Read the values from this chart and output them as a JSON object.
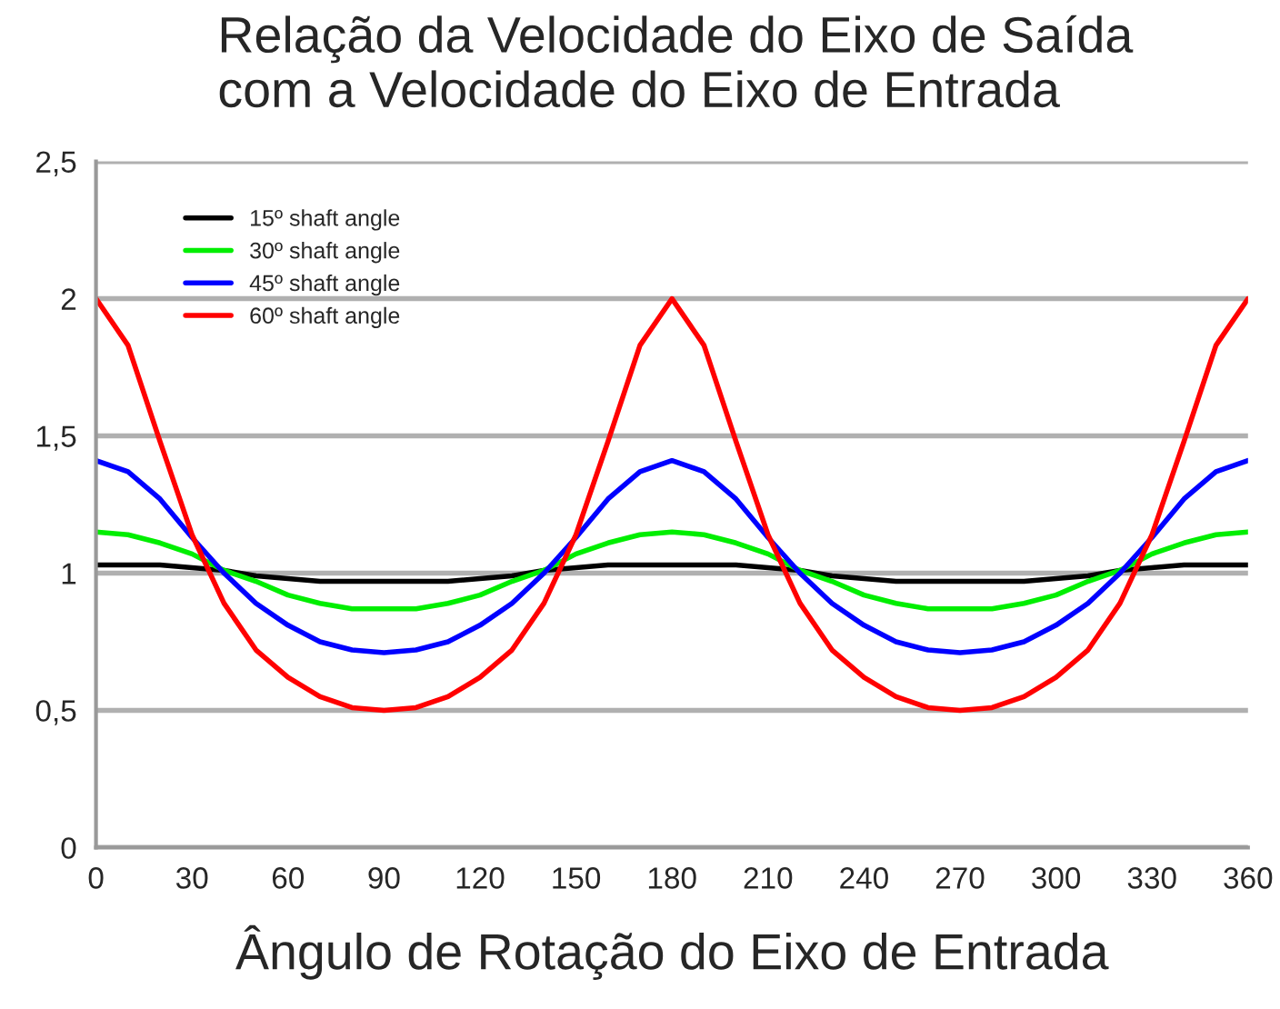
{
  "chart_data": {
    "type": "line",
    "title": "Relação da Velocidade do Eixo de Saída\ncom a Velocidade do Eixo de Entrada",
    "xlabel": "Ângulo de Rotação do Eixo de Entrada",
    "x": [
      0,
      10,
      20,
      30,
      40,
      50,
      60,
      70,
      80,
      90,
      100,
      110,
      120,
      130,
      140,
      150,
      160,
      170,
      180,
      190,
      200,
      210,
      220,
      230,
      240,
      250,
      260,
      270,
      280,
      290,
      300,
      310,
      320,
      330,
      340,
      350,
      360
    ],
    "series": [
      {
        "name": "15º shaft angle",
        "color": "#000000",
        "values": [
          1.03,
          1.03,
          1.03,
          1.02,
          1.01,
          0.99,
          0.98,
          0.97,
          0.97,
          0.97,
          0.97,
          0.97,
          0.98,
          0.99,
          1.01,
          1.02,
          1.03,
          1.03,
          1.03,
          1.03,
          1.03,
          1.02,
          1.01,
          0.99,
          0.98,
          0.97,
          0.97,
          0.97,
          0.97,
          0.97,
          0.98,
          0.99,
          1.01,
          1.02,
          1.03,
          1.03,
          1.03
        ]
      },
      {
        "name": "30º shaft angle",
        "color": "#00ee00",
        "values": [
          1.15,
          1.14,
          1.11,
          1.07,
          1.01,
          0.97,
          0.92,
          0.89,
          0.87,
          0.87,
          0.87,
          0.89,
          0.92,
          0.97,
          1.01,
          1.07,
          1.11,
          1.14,
          1.15,
          1.14,
          1.11,
          1.07,
          1.01,
          0.97,
          0.92,
          0.89,
          0.87,
          0.87,
          0.87,
          0.89,
          0.92,
          0.97,
          1.01,
          1.07,
          1.11,
          1.14,
          1.15
        ]
      },
      {
        "name": "45º shaft angle",
        "color": "#0000ff",
        "values": [
          1.41,
          1.37,
          1.27,
          1.13,
          1.0,
          0.89,
          0.81,
          0.75,
          0.72,
          0.71,
          0.72,
          0.75,
          0.81,
          0.89,
          1.0,
          1.13,
          1.27,
          1.37,
          1.41,
          1.37,
          1.27,
          1.13,
          1.0,
          0.89,
          0.81,
          0.75,
          0.72,
          0.71,
          0.72,
          0.75,
          0.81,
          0.89,
          1.0,
          1.13,
          1.27,
          1.37,
          1.41
        ]
      },
      {
        "name": "60º shaft angle",
        "color": "#ff0000",
        "values": [
          2.0,
          1.83,
          1.48,
          1.14,
          0.89,
          0.72,
          0.62,
          0.55,
          0.51,
          0.5,
          0.51,
          0.55,
          0.62,
          0.72,
          0.89,
          1.14,
          1.48,
          1.83,
          2.0,
          1.83,
          1.48,
          1.14,
          0.89,
          0.72,
          0.62,
          0.55,
          0.51,
          0.5,
          0.51,
          0.55,
          0.62,
          0.72,
          0.89,
          1.14,
          1.48,
          1.83,
          2.0
        ]
      }
    ],
    "xlim": [
      0,
      360
    ],
    "xticks": [
      0,
      30,
      60,
      90,
      120,
      150,
      180,
      210,
      240,
      270,
      300,
      330,
      360
    ],
    "ylim": [
      0,
      2.5
    ],
    "yticks": [
      0,
      {
        "value": 0.5,
        "label": "0,5"
      },
      1,
      {
        "value": 1.5,
        "label": "1,5"
      },
      2,
      {
        "value": 2.5,
        "label": "2,5"
      }
    ],
    "grid": "y",
    "legend": "top left",
    "marker": "none",
    "line_style": "solid"
  }
}
